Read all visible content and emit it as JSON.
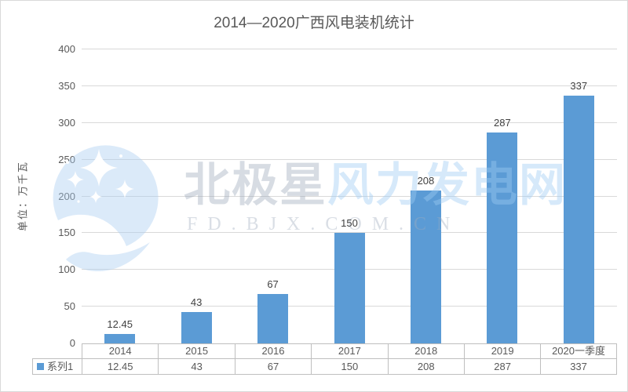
{
  "chart_data": {
    "type": "bar",
    "title": "2014—2020广西风电装机统计",
    "ylabel": "单位：万千瓦",
    "categories": [
      "2014",
      "2015",
      "2016",
      "2017",
      "2018",
      "2019",
      "2020一季度"
    ],
    "series": [
      {
        "name": "系列1",
        "values": [
          12.45,
          43,
          67,
          150,
          208,
          287,
          337
        ]
      }
    ],
    "value_labels": [
      "12.45",
      "43",
      "67",
      "150",
      "208",
      "287",
      "337"
    ],
    "ylim": [
      0,
      400
    ],
    "y_ticks": [
      0,
      50,
      100,
      150,
      200,
      250,
      300,
      350,
      400
    ],
    "grid": true,
    "legend_position": "bottom-table",
    "bar_color": "#5B9BD5",
    "gridline_color": "#D9D9D9",
    "axis_line_color": "#BFBFBF",
    "text_color": "#595959",
    "data_label_color": "#404040"
  },
  "watermark": {
    "brand_gray": "北极星",
    "brand_blue": "风力发电网",
    "url": "FD.BJX.COM.CN"
  }
}
